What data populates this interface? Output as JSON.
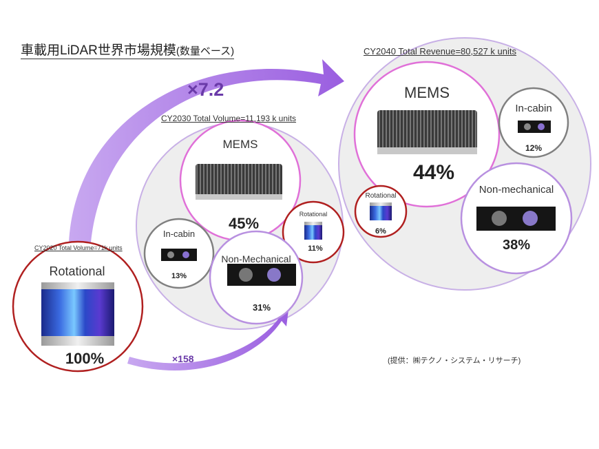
{
  "title": "車載用LiDAR世界市場規模",
  "title_suffix": "(数量ベース)",
  "growth_2030_2040": "×7.2",
  "growth_2020_2030": "×158",
  "source": "(提供：㈱テクノ・システム・リサーチ)",
  "colors": {
    "arrow": "#b07ee6",
    "arrow_text": "#6a3aa8",
    "outer_circle": "#c8b0e6",
    "outer_fill": "#eeeeee",
    "mems": "#e070d8",
    "rotational": "#b02020",
    "in_cabin": "#808080",
    "non_mechanical": "#b890e0"
  },
  "cy2020": {
    "label": "CY2020 Total Volume=71k units",
    "segments": [
      {
        "name": "Rotational",
        "share": "100%"
      }
    ]
  },
  "cy2030": {
    "label": "CY2030 Total Volume=11,193 k units",
    "segments": [
      {
        "name": "MEMS",
        "share": "45%"
      },
      {
        "name": "In-cabin",
        "share": "13%"
      },
      {
        "name": "Non-Mechanical",
        "share": "31%"
      },
      {
        "name": "Rotational",
        "share": "11%"
      }
    ]
  },
  "cy2040": {
    "label": "CY2040 Total Revenue=80,527 k units",
    "segments": [
      {
        "name": "MEMS",
        "share": "44%"
      },
      {
        "name": "In-cabin",
        "share": "12%"
      },
      {
        "name": "Rotational",
        "share": "6%"
      },
      {
        "name": "Non-mechanical",
        "share": "38%"
      }
    ]
  }
}
